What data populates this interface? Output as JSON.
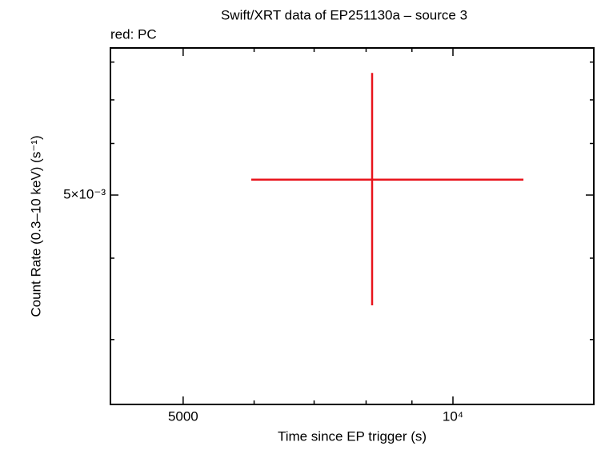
{
  "chart_data": {
    "type": "errorbar",
    "title": "Swift/XRT data of EP251130a – source 3",
    "subtitle": "red: PC",
    "x_label": "Time since EP trigger (s)",
    "y_label": "Count Rate (0.3–10 keV) (s⁻¹)",
    "log_x": true,
    "log_y": true,
    "xlim": [
      4148,
      14360
    ],
    "ylim": [
      0.002385,
      0.00841
    ],
    "xticks": [
      {
        "value": 5000,
        "label": "5000"
      },
      {
        "value": 10000,
        "label": "10⁴"
      }
    ],
    "xminor": [
      6000,
      7000,
      8000,
      9000
    ],
    "yticks": [
      {
        "value": 0.005,
        "label": "5×10⁻³"
      }
    ],
    "yminor": [
      0.003,
      0.004,
      0.006,
      0.007,
      0.008
    ],
    "series": [
      {
        "name": "PC",
        "color": "#e8141c",
        "x": [
          8125
        ],
        "values": [
          0.00528
        ],
        "xlow": [
          5956
        ],
        "xhigh": [
          11985
        ],
        "ylow": [
          0.003386
        ],
        "yhigh": [
          0.0077
        ]
      }
    ]
  }
}
